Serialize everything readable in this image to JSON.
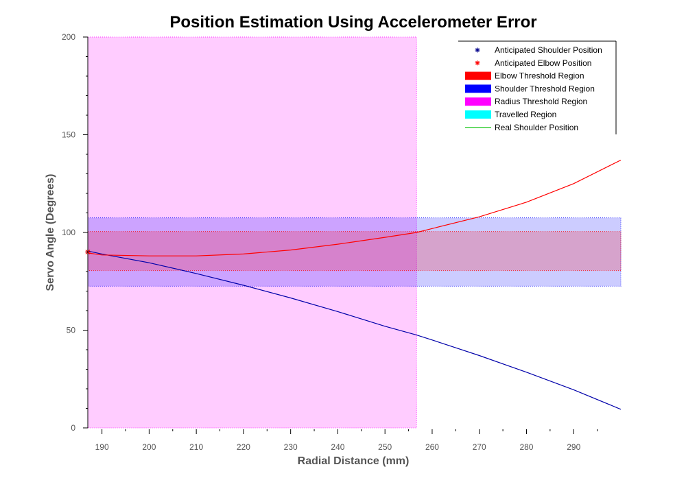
{
  "chart_data": {
    "type": "line",
    "title": "Position Estimation Using Accelerometer Error",
    "xlabel": "Radial Distance (mm)",
    "ylabel": "Servo Angle (Degrees)",
    "xlim": [
      187,
      300
    ],
    "ylim": [
      0,
      200
    ],
    "x_ticks": [
      190,
      200,
      210,
      220,
      230,
      240,
      250,
      260,
      270,
      280,
      290
    ],
    "y_ticks": [
      0,
      50,
      100,
      150,
      200
    ],
    "grid": false,
    "legend_position": "top-right",
    "legend": [
      {
        "label": "Anticipated Shoulder Position",
        "kind": "marker",
        "color": "#00008b"
      },
      {
        "label": "Anticipated Elbow Position",
        "kind": "marker",
        "color": "#ff0000"
      },
      {
        "label": "Elbow Threshold Region",
        "kind": "patch",
        "color": "#ff0000"
      },
      {
        "label": "Shoulder Threshold Region",
        "kind": "patch",
        "color": "#0000ff"
      },
      {
        "label": "Radius Threshold Region",
        "kind": "patch",
        "color": "#ff00ff"
      },
      {
        "label": "Travelled Region",
        "kind": "patch",
        "color": "#00ffff"
      },
      {
        "label": "Real Shoulder Position",
        "kind": "line",
        "color": "#00c000"
      }
    ],
    "regions": [
      {
        "name": "Radius Threshold Region",
        "x": [
          187,
          256.7
        ],
        "y": [
          0,
          200
        ],
        "color": "#ff00ff"
      },
      {
        "name": "Shoulder Threshold Region",
        "x": [
          187,
          300
        ],
        "y": [
          72.5,
          107.5
        ],
        "color": "#0000ff"
      },
      {
        "name": "Elbow Threshold Region",
        "x": [
          187,
          300
        ],
        "y": [
          80.5,
          100.5
        ],
        "color": "#ff0000"
      }
    ],
    "series": [
      {
        "name": "Anticipated Shoulder Position",
        "color": "#0000aa",
        "x": [
          187,
          190,
          200,
          210,
          220,
          230,
          240,
          250,
          256.7,
          260,
          270,
          280,
          290,
          300
        ],
        "y": [
          90.5,
          89,
          84.5,
          79,
          73,
          66.5,
          59.5,
          52,
          47.5,
          45,
          37,
          28.5,
          19.5,
          9.5
        ]
      },
      {
        "name": "Anticipated Elbow Position",
        "color": "#ff0000",
        "x": [
          187,
          190,
          200,
          210,
          220,
          230,
          240,
          250,
          256.7,
          260,
          270,
          280,
          290,
          300
        ],
        "y": [
          89.5,
          88.5,
          88,
          88,
          89,
          91,
          94,
          97.5,
          100,
          102,
          108,
          115.5,
          125,
          137
        ]
      }
    ],
    "start_marker": {
      "x": 187,
      "y": 90
    }
  }
}
